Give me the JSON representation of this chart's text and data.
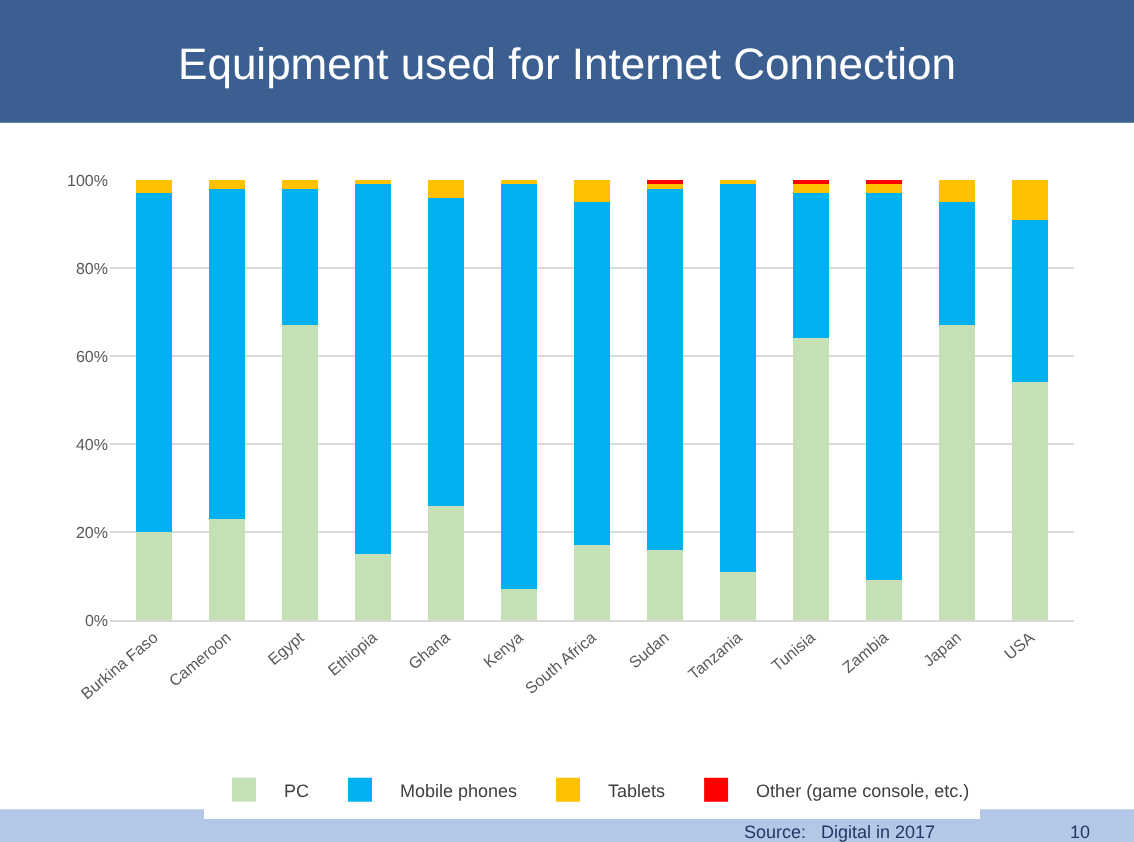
{
  "chart_data": {
    "type": "bar",
    "stacked": true,
    "title": "Equipment used for Internet Connection",
    "categories": [
      "Burkina Faso",
      "Cameroon",
      "Egypt",
      "Ethiopia",
      "Ghana",
      "Kenya",
      "South Africa",
      "Sudan",
      "Tanzania",
      "Tunisia",
      "Zambia",
      "Japan",
      "USA"
    ],
    "series": [
      {
        "name": "PC",
        "color": "#c5e0b4",
        "values": [
          20,
          23,
          67,
          15,
          26,
          7,
          17,
          16,
          11,
          64,
          9,
          67,
          54
        ]
      },
      {
        "name": "Mobile phones",
        "color": "#00b0f0",
        "values": [
          77,
          75,
          31,
          84,
          70,
          92,
          78,
          82,
          88,
          33,
          88,
          28,
          37
        ]
      },
      {
        "name": "Tablets",
        "color": "#ffc000",
        "values": [
          3,
          2,
          2,
          1,
          4,
          1,
          5,
          1,
          1,
          2,
          2,
          5,
          9
        ]
      },
      {
        "name": "Other (game console, etc.)",
        "color": "#ff0000",
        "values": [
          0,
          0,
          0,
          0,
          0,
          0,
          0,
          1,
          0,
          1,
          1,
          0,
          0
        ]
      }
    ],
    "ylim": [
      0,
      100
    ],
    "yticks": [
      {
        "value": 0,
        "label": "0%"
      },
      {
        "value": 20,
        "label": "20%"
      },
      {
        "value": 40,
        "label": "40%"
      },
      {
        "value": 60,
        "label": "60%"
      },
      {
        "value": 80,
        "label": "80%"
      },
      {
        "value": 100,
        "label": "100%"
      }
    ],
    "grid": "y",
    "legend": "bottom",
    "annotations": [
      "Source:   Digital in 2017",
      "10"
    ]
  }
}
